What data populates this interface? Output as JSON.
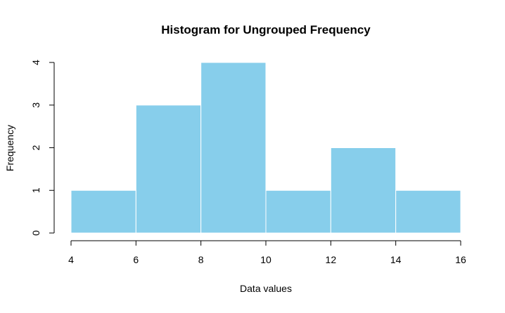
{
  "chart_data": {
    "type": "bar",
    "subtype": "histogram",
    "title": "Histogram for Ungrouped Frequency",
    "xlabel": "Data values",
    "ylabel": "Frequency",
    "bins": [
      {
        "from": 4,
        "to": 6,
        "count": 1
      },
      {
        "from": 6,
        "to": 8,
        "count": 3
      },
      {
        "from": 8,
        "to": 10,
        "count": 4
      },
      {
        "from": 10,
        "to": 12,
        "count": 1
      },
      {
        "from": 12,
        "to": 14,
        "count": 2
      },
      {
        "from": 14,
        "to": 16,
        "count": 1
      }
    ],
    "xlim": [
      4,
      16
    ],
    "ylim": [
      0,
      4
    ],
    "xticks": [
      "4",
      "6",
      "8",
      "10",
      "12",
      "14",
      "16"
    ],
    "yticks": [
      "0",
      "1",
      "2",
      "3",
      "4"
    ],
    "grid": false,
    "legend": "none",
    "colors": {
      "bar_fill": "#87CEEB",
      "bar_border": "#ffffff",
      "axis": "#000000"
    }
  }
}
